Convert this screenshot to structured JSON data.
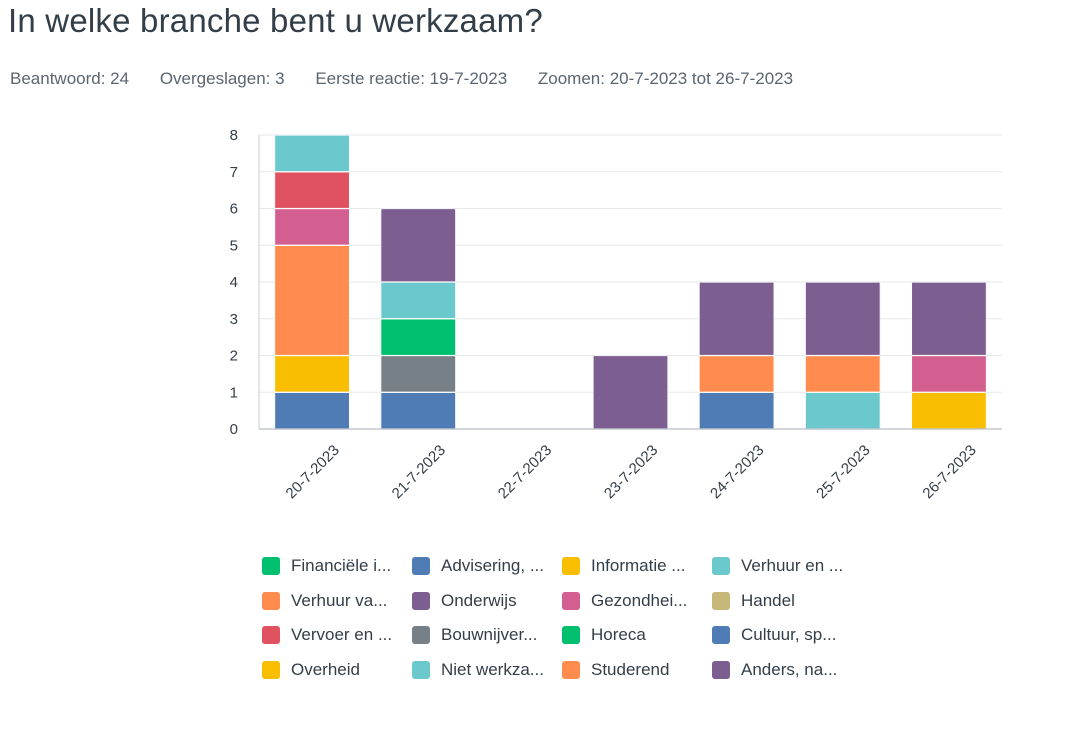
{
  "question": {
    "title": "In welke branche bent u werkzaam?",
    "answered": "Beantwoord: 24",
    "skipped": "Overgeslagen: 3",
    "first_response": "Eerste reactie: 19-7-2023",
    "zoom": "Zoomen: 20-7-2023 tot 26-7-2023"
  },
  "legend": [
    {
      "label": "Financiële i...",
      "color": "#00bf6f"
    },
    {
      "label": "Advisering, ...",
      "color": "#507cb6"
    },
    {
      "label": "Informatie ...",
      "color": "#f9be00"
    },
    {
      "label": "Verhuur en ...",
      "color": "#6bc8cd"
    },
    {
      "label": "Verhuur va...",
      "color": "#ff8b4f"
    },
    {
      "label": "Onderwijs",
      "color": "#7d5e90"
    },
    {
      "label": "Gezondhei...",
      "color": "#d25f90"
    },
    {
      "label": "Handel",
      "color": "#c7b879"
    },
    {
      "label": "Vervoer en ...",
      "color": "#e05260"
    },
    {
      "label": "Bouwnijver...",
      "color": "#768086"
    },
    {
      "label": "Horeca",
      "color": "#00bf6f"
    },
    {
      "label": "Cultuur, sp...",
      "color": "#507cb6"
    },
    {
      "label": "Overheid",
      "color": "#f9be00"
    },
    {
      "label": "Niet werkza...",
      "color": "#6bc8cd"
    },
    {
      "label": "Studerend",
      "color": "#ff8b4f"
    },
    {
      "label": "Anders, na...",
      "color": "#7d5e90"
    }
  ],
  "chart_data": {
    "type": "bar",
    "stacked": true,
    "categories": [
      "20-7-2023",
      "21-7-2023",
      "22-7-2023",
      "23-7-2023",
      "24-7-2023",
      "25-7-2023",
      "26-7-2023"
    ],
    "ylim": [
      0,
      8
    ],
    "yticks": [
      0,
      1,
      2,
      3,
      4,
      5,
      6,
      7,
      8
    ],
    "grid": true,
    "segments": [
      [
        {
          "value": 1,
          "color": "#507cb6"
        },
        {
          "value": 1,
          "color": "#f9be00"
        },
        {
          "value": 3,
          "color": "#ff8b4f"
        },
        {
          "value": 1,
          "color": "#d25f90"
        },
        {
          "value": 1,
          "color": "#e05260"
        },
        {
          "value": 1,
          "color": "#6bc8cd"
        }
      ],
      [
        {
          "value": 1,
          "color": "#507cb6"
        },
        {
          "value": 1,
          "color": "#768086"
        },
        {
          "value": 1,
          "color": "#00bf6f"
        },
        {
          "value": 1,
          "color": "#6bc8cd"
        },
        {
          "value": 2,
          "color": "#7d5e90"
        }
      ],
      [],
      [
        {
          "value": 2,
          "color": "#7d5e90"
        }
      ],
      [
        {
          "value": 1,
          "color": "#507cb6"
        },
        {
          "value": 1,
          "color": "#ff8b4f"
        },
        {
          "value": 2,
          "color": "#7d5e90"
        }
      ],
      [
        {
          "value": 1,
          "color": "#6bc8cd"
        },
        {
          "value": 1,
          "color": "#ff8b4f"
        },
        {
          "value": 2,
          "color": "#7d5e90"
        }
      ],
      [
        {
          "value": 1,
          "color": "#f9be00"
        },
        {
          "value": 1,
          "color": "#d25f90"
        },
        {
          "value": 2,
          "color": "#7d5e90"
        }
      ]
    ]
  }
}
